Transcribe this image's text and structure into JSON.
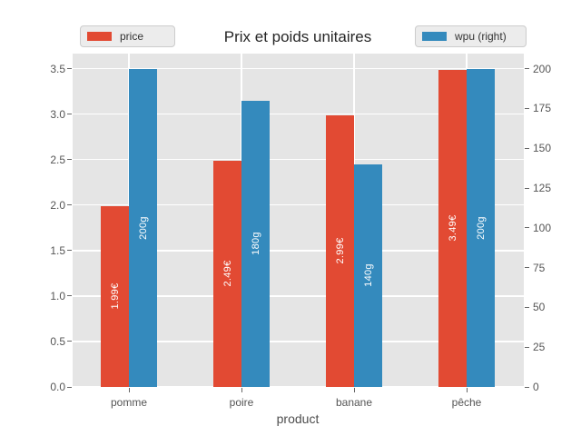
{
  "chart_data": {
    "type": "bar",
    "title": "Prix et poids unitaires",
    "xlabel": "product",
    "categories": [
      "pomme",
      "poire",
      "banane",
      "pêche"
    ],
    "series": [
      {
        "name": "price",
        "axis": "left",
        "color": "#E24A33",
        "values": [
          1.99,
          2.49,
          2.99,
          3.49
        ],
        "bar_labels": [
          "1.99€",
          "2.49€",
          "2.99€",
          "3.49€"
        ]
      },
      {
        "name": "wpu (right)",
        "axis": "right",
        "color": "#348ABD",
        "values": [
          200,
          180,
          140,
          200
        ],
        "bar_labels": [
          "200g",
          "180g",
          "140g",
          "200g"
        ]
      }
    ],
    "axes": {
      "left": {
        "min": 0,
        "max": 3.5,
        "ticks": [
          0,
          0.5,
          1,
          1.5,
          2,
          2.5,
          3,
          3.5
        ],
        "tick_labels": [
          "0.0",
          "0.5",
          "1.0",
          "1.5",
          "2.0",
          "2.5",
          "3.0",
          "3.5"
        ]
      },
      "right": {
        "min": 0,
        "max": 200,
        "ticks": [
          0,
          25,
          50,
          75,
          100,
          125,
          150,
          175,
          200
        ],
        "tick_labels": [
          "0",
          "25",
          "50",
          "75",
          "100",
          "125",
          "150",
          "175",
          "200"
        ]
      }
    },
    "legend": [
      {
        "label": "price",
        "color": "#E24A33",
        "position": "upper-left"
      },
      {
        "label": "wpu (right)",
        "color": "#348ABD",
        "position": "upper-right"
      }
    ],
    "grid": true,
    "style": {
      "figure_bg": "#FFFFFF",
      "plot_bg": "#E5E5E5",
      "grid_color": "#FFFFFF",
      "tick_color": "#666666",
      "tick_label_color": "#555555",
      "title_color": "#262626",
      "xlabel_color": "#4D4D4D",
      "bar_label_color": "#FFFFFF",
      "legend_bg": "#ECECEC",
      "legend_border": "#CCCCCC"
    }
  }
}
